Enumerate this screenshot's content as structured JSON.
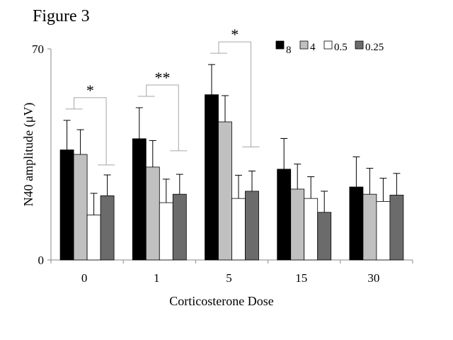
{
  "figure_label": "Figure 3",
  "colors": {
    "8": "#000000",
    "4": "#c0c0c0",
    "0.5": "#ffffff",
    "0.25": "#6b6b6b",
    "bracket": "#a6a6a6",
    "axis": "#888888"
  },
  "chart_data": {
    "type": "bar",
    "xlabel": "Corticosterone Dose",
    "ylabel": "N40 amplitude (μV)",
    "ylim": [
      0,
      70
    ],
    "yticks": [
      "0",
      "70"
    ],
    "categories": [
      "0",
      "1",
      "5",
      "15",
      "30"
    ],
    "legend_position": "top-right",
    "series": [
      {
        "name": "8",
        "values": [
          36.5,
          40.2,
          54.8,
          30.1,
          24.2
        ],
        "errors": [
          9.8,
          10.3,
          10.0,
          10.2,
          10.0
        ]
      },
      {
        "name": "4",
        "values": [
          35.0,
          30.8,
          45.8,
          23.5,
          21.8
        ],
        "errors": [
          8.2,
          8.8,
          8.7,
          8.3,
          8.6
        ]
      },
      {
        "name": "0.5",
        "values": [
          14.9,
          19.0,
          20.4,
          20.4,
          19.4
        ],
        "errors": [
          7.2,
          7.8,
          7.7,
          7.2,
          7.7
        ]
      },
      {
        "name": "0.25",
        "values": [
          21.3,
          21.8,
          22.8,
          15.8,
          21.5
        ],
        "errors": [
          6.9,
          6.6,
          6.7,
          7.0,
          7.2
        ]
      }
    ],
    "annotations": [
      {
        "label": "*",
        "category": "0",
        "from_series": "8",
        "to_series": "0.5"
      },
      {
        "label": "**",
        "category": "1",
        "from_series": "8",
        "to_series": "0.5"
      },
      {
        "label": "*",
        "category": "5",
        "from_series": "8",
        "to_series": "0.5"
      }
    ]
  }
}
